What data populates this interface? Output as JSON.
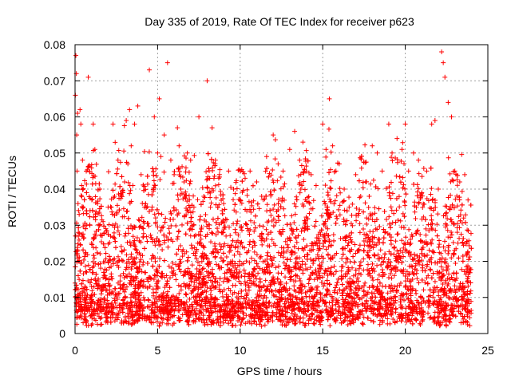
{
  "chart_data": {
    "type": "scatter",
    "title": "Day 335 of 2019, Rate Of TEC Index for receiver p623",
    "xlabel": "GPS time / hours",
    "ylabel": "ROTI / TECUs",
    "xlim": [
      0,
      25
    ],
    "ylim": [
      0,
      0.08
    ],
    "xticks": [
      0,
      5,
      10,
      15,
      20,
      25
    ],
    "xtick_labels": [
      "0",
      "5",
      "10",
      "15",
      "20",
      "25"
    ],
    "yticks": [
      0,
      0.01,
      0.02,
      0.03,
      0.04,
      0.05,
      0.06,
      0.07,
      0.08
    ],
    "ytick_labels": [
      "0",
      "0.01",
      "0.02",
      "0.03",
      "0.04",
      "0.05",
      "0.06",
      "0.07",
      "0.08"
    ],
    "grid": true,
    "marker": "plus",
    "color": "#ff0000",
    "series": [
      {
        "x": [
          0.02,
          0.05,
          0.08,
          0.1,
          0.12,
          0.15,
          0.18,
          0.2,
          0.25,
          0.3,
          0.35,
          0.4,
          0.45,
          0.5,
          0.6,
          0.7,
          0.8,
          0.9,
          1.0,
          1.1,
          1.2,
          1.5,
          1.7,
          2.0,
          2.3,
          2.6,
          2.9,
          3.0,
          3.1,
          3.2,
          3.3,
          3.4,
          3.5,
          3.6,
          3.8,
          4.0,
          4.2,
          4.5,
          4.8,
          5.0,
          5.1,
          5.2,
          5.4,
          5.6,
          5.8,
          6.0,
          6.2,
          6.3,
          6.4,
          6.6,
          6.8,
          7.0,
          7.2,
          7.5,
          7.8,
          8.0,
          8.3,
          8.5,
          8.7,
          9.0,
          9.3,
          9.6,
          10.0,
          10.3,
          10.6,
          11.0,
          11.3,
          11.6,
          12.0,
          12.3,
          12.6,
          13.0,
          13.3,
          13.6,
          13.8,
          14.0,
          14.3,
          14.6,
          15.0,
          15.2,
          15.4,
          15.6,
          15.8,
          16.0,
          16.3,
          16.6,
          17.0,
          17.3,
          17.6,
          18.0,
          18.3,
          18.6,
          19.0,
          19.2,
          19.5,
          19.8,
          20.0,
          20.2,
          20.5,
          20.8,
          21.0,
          21.3,
          21.6,
          21.8,
          22.0,
          22.2,
          22.3,
          22.4,
          22.6,
          22.8,
          23.0,
          23.3,
          23.6,
          23.8
        ],
        "y": [
          0.066,
          0.077,
          0.072,
          0.055,
          0.045,
          0.061,
          0.036,
          0.028,
          0.033,
          0.062,
          0.058,
          0.041,
          0.048,
          0.035,
          0.03,
          0.034,
          0.071,
          0.03,
          0.025,
          0.058,
          0.051,
          0.04,
          0.031,
          0.035,
          0.058,
          0.048,
          0.039,
          0.042,
          0.059,
          0.047,
          0.062,
          0.052,
          0.041,
          0.058,
          0.063,
          0.044,
          0.035,
          0.073,
          0.06,
          0.05,
          0.065,
          0.049,
          0.055,
          0.075,
          0.048,
          0.044,
          0.057,
          0.052,
          0.04,
          0.042,
          0.05,
          0.048,
          0.035,
          0.06,
          0.038,
          0.07,
          0.057,
          0.048,
          0.043,
          0.036,
          0.045,
          0.04,
          0.037,
          0.043,
          0.045,
          0.042,
          0.038,
          0.049,
          0.055,
          0.047,
          0.045,
          0.051,
          0.056,
          0.048,
          0.053,
          0.045,
          0.044,
          0.041,
          0.058,
          0.051,
          0.065,
          0.052,
          0.045,
          0.047,
          0.04,
          0.035,
          0.044,
          0.038,
          0.042,
          0.052,
          0.05,
          0.045,
          0.058,
          0.05,
          0.054,
          0.051,
          0.058,
          0.045,
          0.05,
          0.048,
          0.039,
          0.045,
          0.058,
          0.059,
          0.04,
          0.078,
          0.075,
          0.071,
          0.064,
          0.06,
          0.045,
          0.042,
          0.044,
          0.037
        ]
      }
    ],
    "background_noise": {
      "description_free": true,
      "base_min": 0.002,
      "base_typical": 0.012
    }
  }
}
